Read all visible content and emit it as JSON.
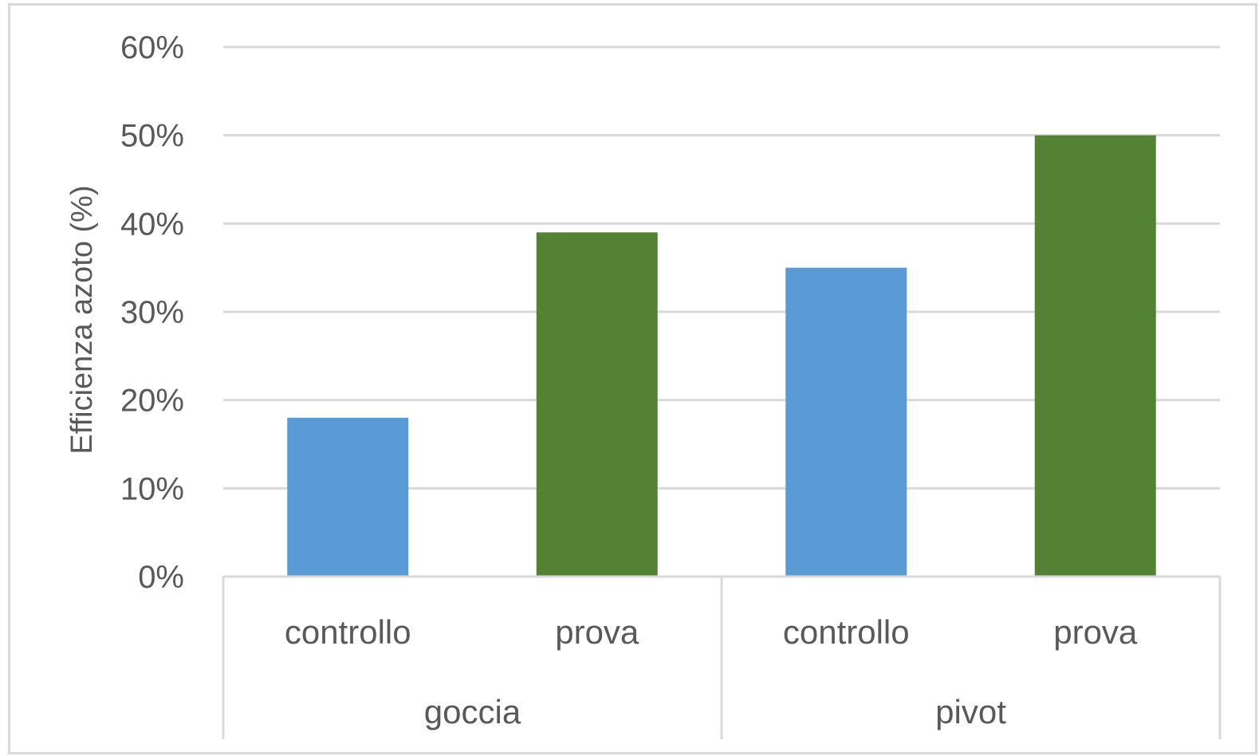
{
  "chart_data": {
    "type": "bar",
    "title": "",
    "ylabel": "Efficienza azoto (%)",
    "xlabel": "",
    "ylim": [
      0,
      0.6
    ],
    "yticks": [
      0,
      0.1,
      0.2,
      0.3,
      0.4,
      0.5,
      0.6
    ],
    "ytick_labels": [
      "0%",
      "10%",
      "20%",
      "30%",
      "40%",
      "50%",
      "60%"
    ],
    "groups": [
      {
        "label": "goccia",
        "categories": [
          {
            "label": "controllo",
            "value": 0.18,
            "color": "#5b9bd5"
          },
          {
            "label": "prova",
            "value": 0.39,
            "color": "#548235"
          }
        ]
      },
      {
        "label": "pivot",
        "categories": [
          {
            "label": "controllo",
            "value": 0.35,
            "color": "#5b9bd5"
          },
          {
            "label": "prova",
            "value": 0.5,
            "color": "#548235"
          }
        ]
      }
    ],
    "grid": true,
    "legend": "none",
    "colors": {
      "controllo": "#5b9bd5",
      "prova": "#548235",
      "grid": "#d9d9d9",
      "text": "#595959"
    }
  }
}
